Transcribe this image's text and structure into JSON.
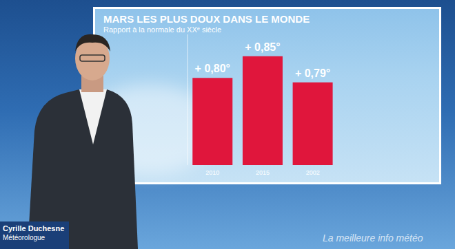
{
  "chart_data": {
    "type": "bar",
    "title": "MARS LES PLUS DOUX DANS LE MONDE",
    "subtitle": "Rapport à la normale du XXᵉ siècle",
    "categories": [
      "2010",
      "2015",
      "2002"
    ],
    "values": [
      0.8,
      0.85,
      0.79
    ],
    "value_labels": [
      "+ 0,80°",
      "+ 0,85°",
      "+ 0,79°"
    ],
    "color": "#e0163c",
    "ylim": [
      0.6,
      0.9
    ],
    "grid": false,
    "data_labels": true,
    "tick_labels": "x"
  },
  "overlay": {
    "name": "Cyrille Duchesne",
    "role": "Météorologue",
    "slogan": "La meilleure info météo"
  }
}
